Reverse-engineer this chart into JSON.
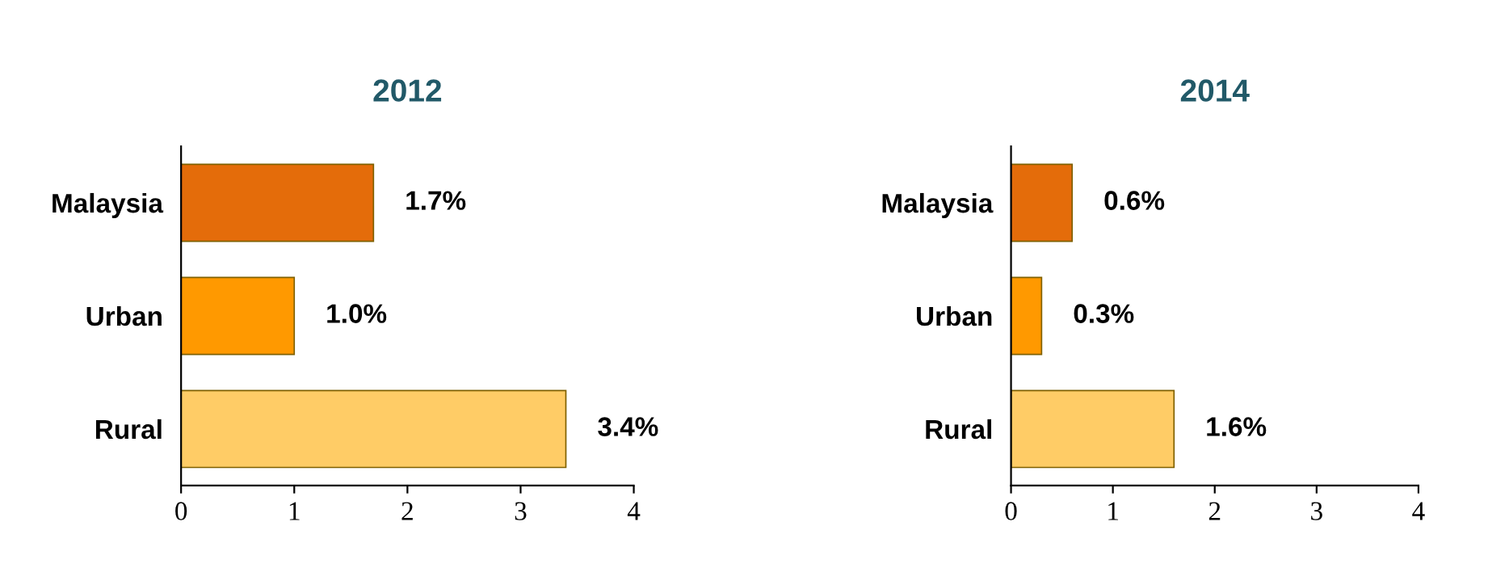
{
  "chart_data": [
    {
      "type": "bar",
      "orientation": "horizontal",
      "title": "2012",
      "categories": [
        "Malaysia",
        "Urban",
        "Rural"
      ],
      "values": [
        1.7,
        1.0,
        3.4
      ],
      "colors": [
        "#e46c0a",
        "#ff9900",
        "#ffcc66"
      ],
      "value_labels": [
        "1.7%",
        "1.0%",
        "3.4%"
      ],
      "xlim": [
        0,
        4
      ],
      "xticks": [
        0,
        1,
        2,
        3,
        4
      ],
      "grid": false,
      "legend": false
    },
    {
      "type": "bar",
      "orientation": "horizontal",
      "title": "2014",
      "categories": [
        "Malaysia",
        "Urban",
        "Rural"
      ],
      "values": [
        0.6,
        0.3,
        1.6
      ],
      "colors": [
        "#e46c0a",
        "#ff9900",
        "#ffcc66"
      ],
      "value_labels": [
        "0.6%",
        "0.3%",
        "1.6%"
      ],
      "xlim": [
        0,
        4
      ],
      "xticks": [
        0,
        1,
        2,
        3,
        4
      ],
      "grid": false,
      "legend": false
    }
  ]
}
